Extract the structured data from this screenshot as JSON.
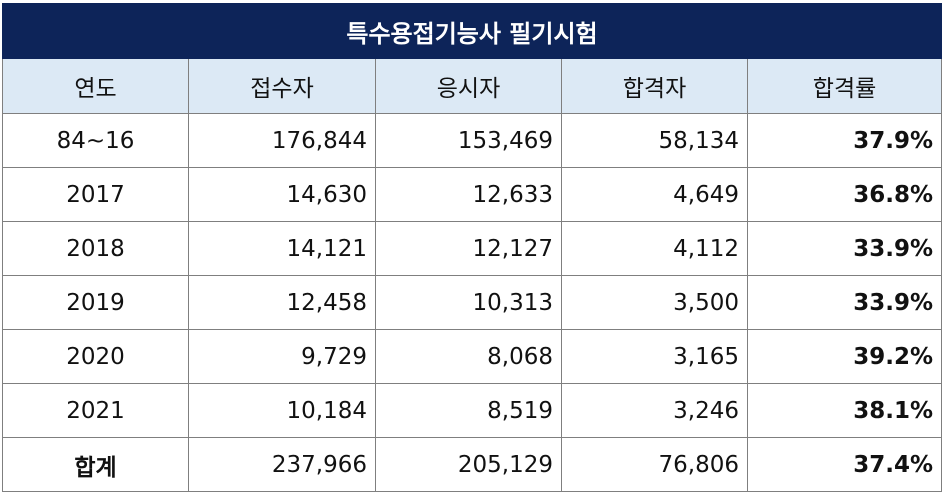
{
  "title": "특수용접기능사 필기시험",
  "columns": [
    "연도",
    "접수자",
    "응시자",
    "합격자",
    "합격률"
  ],
  "rows": [
    {
      "year": "84~16",
      "applicants": "176,844",
      "examinees": "153,469",
      "passers": "58,134",
      "rate": "37.9%"
    },
    {
      "year": "2017",
      "applicants": "14,630",
      "examinees": "12,633",
      "passers": "4,649",
      "rate": "36.8%"
    },
    {
      "year": "2018",
      "applicants": "14,121",
      "examinees": "12,127",
      "passers": "4,112",
      "rate": "33.9%"
    },
    {
      "year": "2019",
      "applicants": "12,458",
      "examinees": "10,313",
      "passers": "3,500",
      "rate": "33.9%"
    },
    {
      "year": "2020",
      "applicants": "9,729",
      "examinees": "8,068",
      "passers": "3,165",
      "rate": "39.2%"
    },
    {
      "year": "2021",
      "applicants": "10,184",
      "examinees": "8,519",
      "passers": "3,246",
      "rate": "38.1%"
    }
  ],
  "total": {
    "label": "합계",
    "applicants": "237,966",
    "examinees": "205,129",
    "passers": "76,806",
    "rate": "37.4%"
  }
}
